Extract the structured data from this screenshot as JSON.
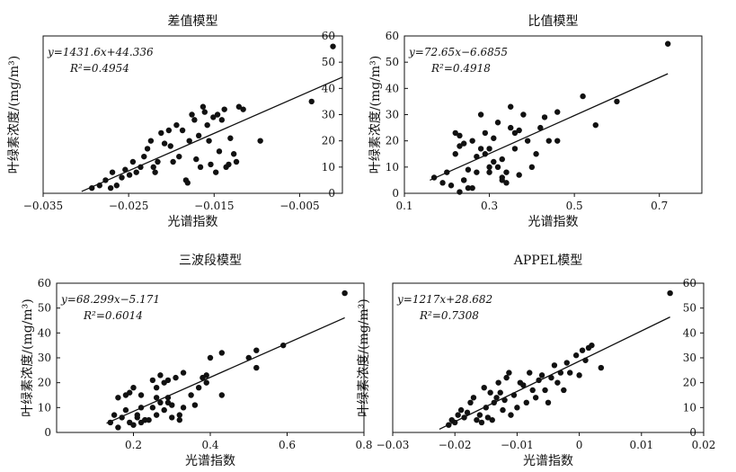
{
  "chart_data": [
    {
      "type": "scatter",
      "title": "差值模型",
      "xlabel": "光谱指数",
      "ylabel": "叶绿素浓度/(mg/m³)",
      "xlim": [
        -0.035,
        0.0
      ],
      "ylim": [
        0,
        60
      ],
      "xticks": [
        "-0.035",
        "-0.025",
        "-0.015",
        "-0.005"
      ],
      "yticks": [
        "0",
        "10",
        "20",
        "30",
        "40",
        "50",
        "60"
      ],
      "y_axis_side": "right",
      "equation": "y=1431.6x+44.336",
      "r2": "R²=0.4954",
      "fit": {
        "x": [
          -0.0305,
          0.0
        ],
        "y": [
          0.7,
          44.3
        ]
      },
      "points": [
        [
          -0.0293,
          2
        ],
        [
          -0.0284,
          3
        ],
        [
          -0.0277,
          5
        ],
        [
          -0.0271,
          2
        ],
        [
          -0.0264,
          3
        ],
        [
          -0.0269,
          8
        ],
        [
          -0.0258,
          6
        ],
        [
          -0.0254,
          9
        ],
        [
          -0.0249,
          7
        ],
        [
          -0.0245,
          12
        ],
        [
          -0.0241,
          8
        ],
        [
          -0.0236,
          10
        ],
        [
          -0.0232,
          14
        ],
        [
          -0.0228,
          17
        ],
        [
          -0.0224,
          20
        ],
        [
          -0.0221,
          10
        ],
        [
          -0.0219,
          8
        ],
        [
          -0.0216,
          12
        ],
        [
          -0.0212,
          23
        ],
        [
          -0.0208,
          19
        ],
        [
          -0.0203,
          24
        ],
        [
          -0.0201,
          18
        ],
        [
          -0.0198,
          12
        ],
        [
          -0.0194,
          26
        ],
        [
          -0.0191,
          14
        ],
        [
          -0.0187,
          24
        ],
        [
          -0.0183,
          5
        ],
        [
          -0.0181,
          4
        ],
        [
          -0.0179,
          20
        ],
        [
          -0.0176,
          30
        ],
        [
          -0.0173,
          28
        ],
        [
          -0.0171,
          13
        ],
        [
          -0.0168,
          22
        ],
        [
          -0.0166,
          10
        ],
        [
          -0.0163,
          33
        ],
        [
          -0.0161,
          31
        ],
        [
          -0.0158,
          26
        ],
        [
          -0.0156,
          20
        ],
        [
          -0.0154,
          11
        ],
        [
          -0.0151,
          29
        ],
        [
          -0.0148,
          8
        ],
        [
          -0.0146,
          30
        ],
        [
          -0.0144,
          16
        ],
        [
          -0.0141,
          28
        ],
        [
          -0.0138,
          32
        ],
        [
          -0.0136,
          10
        ],
        [
          -0.0133,
          11
        ],
        [
          -0.0131,
          21
        ],
        [
          -0.0127,
          15
        ],
        [
          -0.0124,
          12
        ],
        [
          -0.0121,
          33
        ],
        [
          -0.0116,
          32
        ],
        [
          -0.0096,
          20
        ],
        [
          -0.0036,
          35
        ],
        [
          -0.0011,
          56
        ]
      ]
    },
    {
      "type": "scatter",
      "title": "比值模型",
      "xlabel": "光谱指数",
      "ylabel": "叶绿素浓度/(mg/m³)",
      "xlim": [
        0.1,
        0.8
      ],
      "ylim": [
        0,
        60
      ],
      "xticks": [
        "0.1",
        "0.3",
        "0.5",
        "0.7"
      ],
      "yticks": [
        "0",
        "10",
        "20",
        "30",
        "40",
        "50",
        "60"
      ],
      "y_axis_side": "left",
      "equation": "y=72.65x−6.6855",
      "r2": "R²=0.4918",
      "fit": {
        "x": [
          0.16,
          0.72
        ],
        "y": [
          5.0,
          45.6
        ]
      },
      "points": [
        [
          0.17,
          6
        ],
        [
          0.19,
          4
        ],
        [
          0.2,
          8
        ],
        [
          0.21,
          3
        ],
        [
          0.22,
          15
        ],
        [
          0.22,
          23
        ],
        [
          0.23,
          22
        ],
        [
          0.23,
          18
        ],
        [
          0.23,
          0.5
        ],
        [
          0.24,
          5
        ],
        [
          0.24,
          19
        ],
        [
          0.24,
          5
        ],
        [
          0.25,
          9
        ],
        [
          0.25,
          2
        ],
        [
          0.26,
          2
        ],
        [
          0.26,
          20
        ],
        [
          0.27,
          8
        ],
        [
          0.27,
          14
        ],
        [
          0.28,
          30
        ],
        [
          0.28,
          17
        ],
        [
          0.29,
          23
        ],
        [
          0.29,
          15
        ],
        [
          0.3,
          10
        ],
        [
          0.3,
          8
        ],
        [
          0.3,
          17
        ],
        [
          0.31,
          21
        ],
        [
          0.31,
          12
        ],
        [
          0.32,
          27
        ],
        [
          0.32,
          10
        ],
        [
          0.33,
          13
        ],
        [
          0.33,
          6
        ],
        [
          0.33,
          5
        ],
        [
          0.34,
          4
        ],
        [
          0.34,
          8
        ],
        [
          0.35,
          33
        ],
        [
          0.35,
          25
        ],
        [
          0.36,
          23
        ],
        [
          0.36,
          17
        ],
        [
          0.37,
          7
        ],
        [
          0.37,
          24
        ],
        [
          0.38,
          30
        ],
        [
          0.39,
          20
        ],
        [
          0.4,
          10
        ],
        [
          0.41,
          15
        ],
        [
          0.42,
          25
        ],
        [
          0.43,
          29
        ],
        [
          0.44,
          20
        ],
        [
          0.46,
          31
        ],
        [
          0.46,
          20
        ],
        [
          0.52,
          37
        ],
        [
          0.55,
          26
        ],
        [
          0.6,
          35
        ],
        [
          0.72,
          57
        ]
      ]
    },
    {
      "type": "scatter",
      "title": "三波段模型",
      "xlabel": "光谱指数",
      "ylabel": "叶绿素浓度/(mg/m³)",
      "xlim": [
        0.0,
        0.8
      ],
      "ylim": [
        0,
        60
      ],
      "xticks": [
        "0.2",
        "0.4",
        "0.6",
        "0.8"
      ],
      "yticks": [
        "0",
        "10",
        "20",
        "30",
        "40",
        "50",
        "60"
      ],
      "y_axis_side": "left",
      "equation": "y=68.299x−5.171",
      "r2": "R²=0.6014",
      "fit": {
        "x": [
          0.13,
          0.75
        ],
        "y": [
          3.7,
          46.1
        ]
      },
      "points": [
        [
          0.14,
          4
        ],
        [
          0.15,
          7
        ],
        [
          0.16,
          2
        ],
        [
          0.16,
          14
        ],
        [
          0.17,
          6
        ],
        [
          0.18,
          15
        ],
        [
          0.18,
          9
        ],
        [
          0.19,
          16
        ],
        [
          0.19,
          4
        ],
        [
          0.2,
          3
        ],
        [
          0.2,
          18
        ],
        [
          0.21,
          7
        ],
        [
          0.21,
          6
        ],
        [
          0.22,
          10
        ],
        [
          0.22,
          4
        ],
        [
          0.22,
          15
        ],
        [
          0.23,
          5
        ],
        [
          0.23,
          5
        ],
        [
          0.24,
          5
        ],
        [
          0.25,
          21
        ],
        [
          0.25,
          10
        ],
        [
          0.26,
          14
        ],
        [
          0.26,
          7
        ],
        [
          0.26,
          18
        ],
        [
          0.27,
          23
        ],
        [
          0.27,
          12
        ],
        [
          0.28,
          20
        ],
        [
          0.28,
          9
        ],
        [
          0.29,
          21
        ],
        [
          0.29,
          14
        ],
        [
          0.29,
          12
        ],
        [
          0.3,
          11
        ],
        [
          0.3,
          6
        ],
        [
          0.31,
          22
        ],
        [
          0.32,
          7
        ],
        [
          0.32,
          5
        ],
        [
          0.33,
          24
        ],
        [
          0.33,
          10
        ],
        [
          0.35,
          15
        ],
        [
          0.36,
          11
        ],
        [
          0.37,
          18
        ],
        [
          0.38,
          22
        ],
        [
          0.39,
          20
        ],
        [
          0.39,
          23
        ],
        [
          0.4,
          30
        ],
        [
          0.43,
          15
        ],
        [
          0.43,
          32
        ],
        [
          0.5,
          30
        ],
        [
          0.52,
          26
        ],
        [
          0.52,
          33
        ],
        [
          0.59,
          35
        ],
        [
          0.75,
          56
        ]
      ]
    },
    {
      "type": "scatter",
      "title": "APPEL模型",
      "xlabel": "光谱指数",
      "ylabel": "叶绿素浓度/(mg/m³)",
      "xlim": [
        -0.03,
        0.02
      ],
      "ylim": [
        0,
        60
      ],
      "xticks": [
        "-0.03",
        "-0.02",
        "-0.01",
        "0",
        "0.01",
        "0.02"
      ],
      "yticks": [
        "0",
        "10",
        "20",
        "30",
        "40",
        "50",
        "60"
      ],
      "y_axis_side": "right",
      "equation": "y=1217x+28.682",
      "r2": "R²=0.7308",
      "fit": {
        "x": [
          -0.0225,
          0.0146
        ],
        "y": [
          1.3,
          46.4
        ]
      },
      "points": [
        [
          -0.021,
          3
        ],
        [
          -0.0205,
          5
        ],
        [
          -0.02,
          4
        ],
        [
          -0.0195,
          7
        ],
        [
          -0.019,
          9
        ],
        [
          -0.0185,
          6
        ],
        [
          -0.018,
          8
        ],
        [
          -0.0175,
          12
        ],
        [
          -0.017,
          14
        ],
        [
          -0.0165,
          5
        ],
        [
          -0.016,
          7
        ],
        [
          -0.0157,
          4
        ],
        [
          -0.0153,
          18
        ],
        [
          -0.015,
          10
        ],
        [
          -0.0147,
          6
        ],
        [
          -0.0143,
          16
        ],
        [
          -0.014,
          5
        ],
        [
          -0.0137,
          12
        ],
        [
          -0.0133,
          14
        ],
        [
          -0.013,
          20
        ],
        [
          -0.0127,
          16
        ],
        [
          -0.0123,
          9
        ],
        [
          -0.012,
          13
        ],
        [
          -0.0117,
          22
        ],
        [
          -0.0113,
          24
        ],
        [
          -0.011,
          7
        ],
        [
          -0.0105,
          15
        ],
        [
          -0.01,
          10
        ],
        [
          -0.0095,
          20
        ],
        [
          -0.009,
          19
        ],
        [
          -0.0085,
          12
        ],
        [
          -0.008,
          24
        ],
        [
          -0.0075,
          17
        ],
        [
          -0.007,
          14
        ],
        [
          -0.0065,
          21
        ],
        [
          -0.006,
          23
        ],
        [
          -0.0055,
          17
        ],
        [
          -0.005,
          12
        ],
        [
          -0.0045,
          22
        ],
        [
          -0.004,
          27
        ],
        [
          -0.0035,
          20
        ],
        [
          -0.003,
          24
        ],
        [
          -0.0025,
          17
        ],
        [
          -0.002,
          28
        ],
        [
          -0.0015,
          24
        ],
        [
          -0.0005,
          31
        ],
        [
          0.0,
          23
        ],
        [
          0.0005,
          33
        ],
        [
          0.001,
          29
        ],
        [
          0.0015,
          34
        ],
        [
          0.002,
          35
        ],
        [
          0.0035,
          26
        ],
        [
          0.0146,
          56
        ]
      ]
    }
  ]
}
